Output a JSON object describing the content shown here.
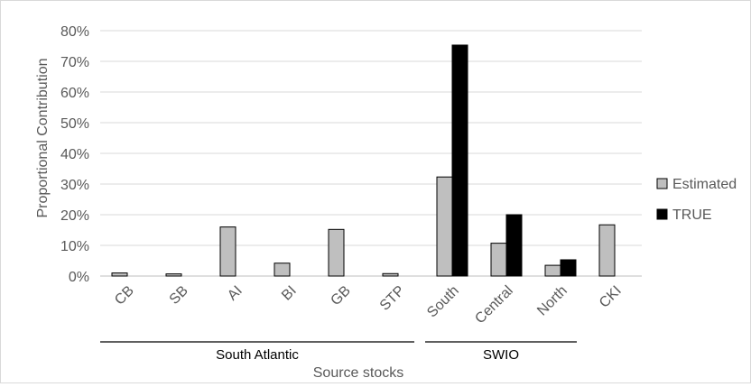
{
  "chart_data": {
    "type": "bar",
    "title": "",
    "xlabel": "Source stocks",
    "ylabel": "Proportional Contribution",
    "ylim": [
      0,
      0.8
    ],
    "yticks": [
      "0%",
      "10%",
      "20%",
      "30%",
      "40%",
      "50%",
      "60%",
      "70%",
      "80%"
    ],
    "grid": true,
    "legend_position": "right",
    "categories": [
      "CB",
      "SB",
      "AI",
      "BI",
      "GB",
      "STP",
      "South",
      "Central",
      "North",
      "CKI"
    ],
    "series": [
      {
        "name": "Estimated",
        "color": "#bfbfbf",
        "values": [
          0.01,
          0.007,
          0.16,
          0.042,
          0.152,
          0.008,
          0.323,
          0.107,
          0.035,
          0.167
        ]
      },
      {
        "name": "TRUE",
        "color": "#000000",
        "values": [
          null,
          null,
          null,
          null,
          null,
          null,
          0.753,
          0.2,
          0.053,
          null
        ]
      }
    ],
    "groups": [
      {
        "label": "South Atlantic",
        "from": 0,
        "to": 5
      },
      {
        "label": "SWIO",
        "from": 6,
        "to": 8
      }
    ]
  }
}
